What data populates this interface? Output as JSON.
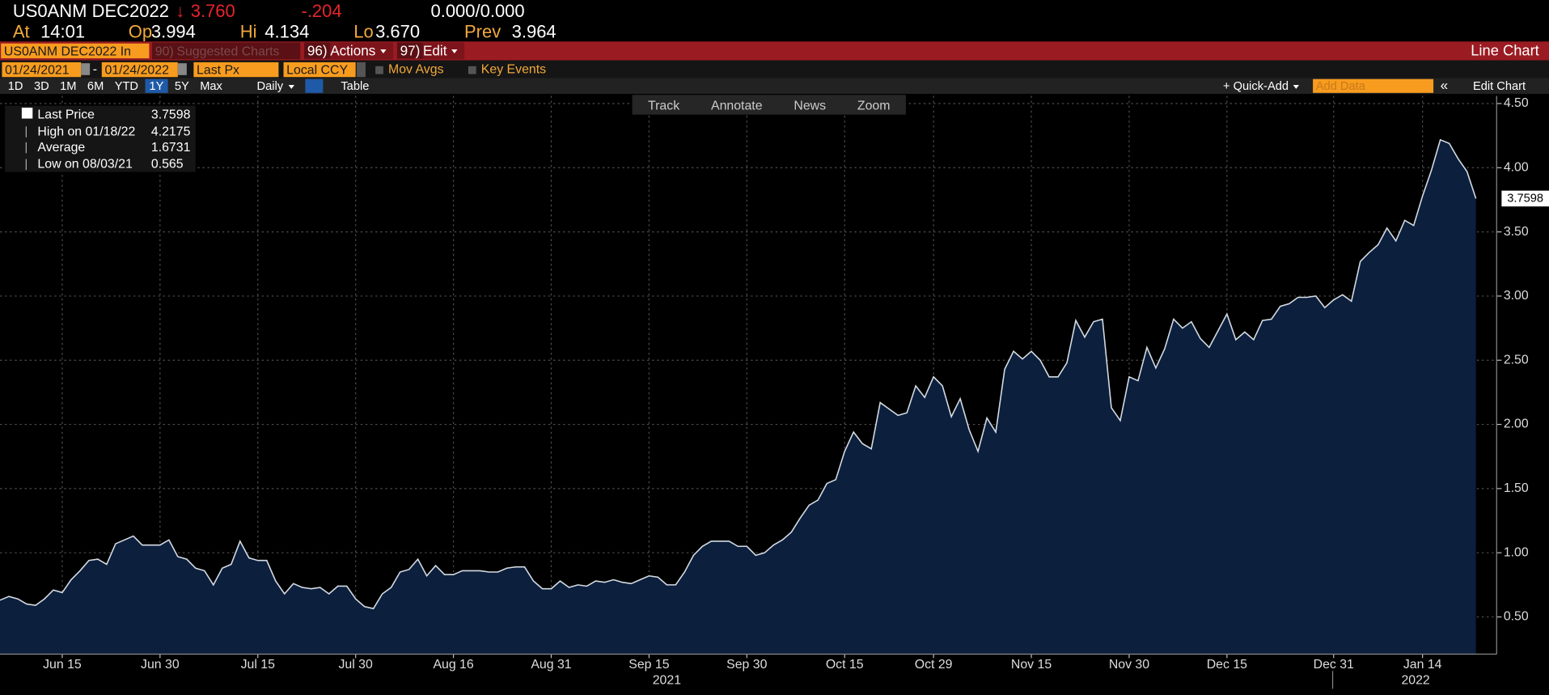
{
  "header": {
    "ticker": "US0ANM DEC2022",
    "change_arrow": "↓",
    "last": "3.760",
    "change": "-.204",
    "bid_ask": "0.000/0.000",
    "quotes": [
      {
        "label": "At",
        "value": "14:01"
      },
      {
        "label": "Op",
        "value": "3.994"
      },
      {
        "label": "Hi",
        "value": "4.134"
      },
      {
        "label": "Lo",
        "value": "3.670"
      },
      {
        "label": "Prev",
        "value": "3.964"
      }
    ]
  },
  "menu": {
    "security": "US0ANM DEC2022 In",
    "items": [
      {
        "code": "90)",
        "label": "Suggested Charts"
      },
      {
        "code": "96)",
        "label": "Actions"
      },
      {
        "code": "97)",
        "label": "Edit"
      }
    ],
    "view": "Line Chart"
  },
  "settings": {
    "start_date": "01/24/2021",
    "date_separator": "-",
    "end_date": "01/24/2022",
    "field": "Last Px",
    "currency": "Local CCY",
    "options": [
      "Mov Avgs",
      "Key Events"
    ]
  },
  "periods": {
    "buttons": [
      "1D",
      "3D",
      "1M",
      "6M",
      "YTD",
      "1Y",
      "5Y",
      "Max"
    ],
    "selected": "1Y",
    "frequency": "Daily",
    "table": "Table",
    "quick_add": "+ Quick-Add",
    "add_data": "Add Data",
    "chevrons": "«",
    "edit_chart": "Edit Chart"
  },
  "tools": [
    "Track",
    "Annotate",
    "News",
    "Zoom"
  ],
  "chart_data": {
    "type": "area",
    "color": "#0c1f3d",
    "line_color": "#d4dbe3",
    "stats": [
      {
        "label": "Last Price",
        "value": 3.7598
      },
      {
        "label": "High on 01/18/22",
        "value": 4.2175
      },
      {
        "label": "Average",
        "value": 1.6731
      },
      {
        "label": "Low on 08/03/21",
        "value": 0.565
      }
    ],
    "categories": [
      null,
      null,
      null,
      null,
      null,
      null,
      null,
      "Jun 15",
      null,
      null,
      null,
      null,
      null,
      null,
      null,
      null,
      null,
      null,
      "Jun 30",
      null,
      null,
      null,
      null,
      null,
      null,
      null,
      null,
      null,
      null,
      "Jul 15",
      null,
      null,
      null,
      null,
      null,
      null,
      null,
      null,
      null,
      null,
      "Jul 30",
      null,
      null,
      null,
      null,
      null,
      null,
      null,
      null,
      null,
      null,
      "Aug 16",
      null,
      null,
      null,
      null,
      null,
      null,
      null,
      null,
      null,
      null,
      "Aug 31",
      null,
      null,
      null,
      null,
      null,
      null,
      null,
      null,
      null,
      null,
      "Sep 15",
      null,
      null,
      null,
      null,
      null,
      null,
      null,
      null,
      null,
      null,
      "Sep 30",
      null,
      null,
      null,
      null,
      null,
      null,
      null,
      null,
      null,
      null,
      "Oct 15",
      null,
      null,
      null,
      null,
      null,
      null,
      null,
      null,
      null,
      "Oct 29",
      null,
      null,
      null,
      null,
      null,
      null,
      null,
      null,
      null,
      null,
      "Nov 15",
      null,
      null,
      null,
      null,
      null,
      null,
      null,
      null,
      null,
      null,
      "Nov 30",
      null,
      null,
      null,
      null,
      null,
      null,
      null,
      null,
      null,
      null,
      "Dec 15",
      null,
      null,
      null,
      null,
      null,
      null,
      null,
      null,
      null,
      null,
      null,
      "Dec 31",
      null,
      null,
      null,
      null,
      null,
      null,
      null,
      null,
      null,
      "Jan 14",
      null,
      null,
      null,
      null,
      null,
      null
    ],
    "values": [
      0.63,
      0.66,
      0.64,
      0.6,
      0.59,
      0.64,
      0.71,
      0.69,
      0.79,
      0.86,
      0.94,
      0.95,
      0.91,
      1.07,
      1.1,
      1.13,
      1.06,
      1.06,
      1.06,
      1.1,
      0.97,
      0.95,
      0.88,
      0.86,
      0.75,
      0.88,
      0.91,
      1.09,
      0.96,
      0.94,
      0.94,
      0.78,
      0.68,
      0.76,
      0.73,
      0.72,
      0.73,
      0.68,
      0.74,
      0.74,
      0.64,
      0.58,
      0.565,
      0.68,
      0.73,
      0.85,
      0.87,
      0.95,
      0.82,
      0.9,
      0.83,
      0.83,
      0.86,
      0.86,
      0.86,
      0.85,
      0.85,
      0.88,
      0.89,
      0.89,
      0.78,
      0.72,
      0.72,
      0.78,
      0.73,
      0.75,
      0.74,
      0.78,
      0.77,
      0.79,
      0.77,
      0.76,
      0.79,
      0.82,
      0.81,
      0.75,
      0.75,
      0.85,
      0.98,
      1.05,
      1.09,
      1.09,
      1.09,
      1.05,
      1.05,
      0.98,
      1.0,
      1.06,
      1.1,
      1.16,
      1.27,
      1.37,
      1.41,
      1.54,
      1.57,
      1.79,
      1.94,
      1.85,
      1.81,
      2.17,
      2.12,
      2.07,
      2.09,
      2.3,
      2.21,
      2.37,
      2.3,
      2.06,
      2.2,
      1.96,
      1.79,
      2.05,
      1.94,
      2.43,
      2.57,
      2.51,
      2.57,
      2.5,
      2.37,
      2.37,
      2.48,
      2.81,
      2.68,
      2.8,
      2.82,
      2.13,
      2.03,
      2.37,
      2.34,
      2.6,
      2.44,
      2.59,
      2.82,
      2.75,
      2.8,
      2.67,
      2.6,
      2.73,
      2.86,
      2.66,
      2.72,
      2.66,
      2.81,
      2.82,
      2.92,
      2.94,
      2.99,
      2.99,
      3.0,
      2.91,
      2.97,
      3.01,
      2.96,
      3.27,
      3.34,
      3.4,
      3.53,
      3.43,
      3.59,
      3.55,
      3.78,
      3.98,
      4.2175,
      4.19,
      4.07,
      3.97,
      3.7598
    ],
    "year_labels": [
      "2021",
      "2022"
    ],
    "ylim": [
      0.21,
      4.56
    ],
    "yticks": [
      {
        "value": 0.5,
        "label": "0.50"
      },
      {
        "value": 1,
        "label": "1.00"
      },
      {
        "value": 1.5,
        "label": "1.50"
      },
      {
        "value": 2,
        "label": "2.00"
      },
      {
        "value": 2.5,
        "label": "2.50"
      },
      {
        "value": 3,
        "label": "3.00"
      },
      {
        "value": 3.5,
        "label": "3.50"
      },
      {
        "value": 4,
        "label": "4.00"
      },
      {
        "value": 4.5,
        "label": "4.50"
      }
    ],
    "grid": true
  }
}
